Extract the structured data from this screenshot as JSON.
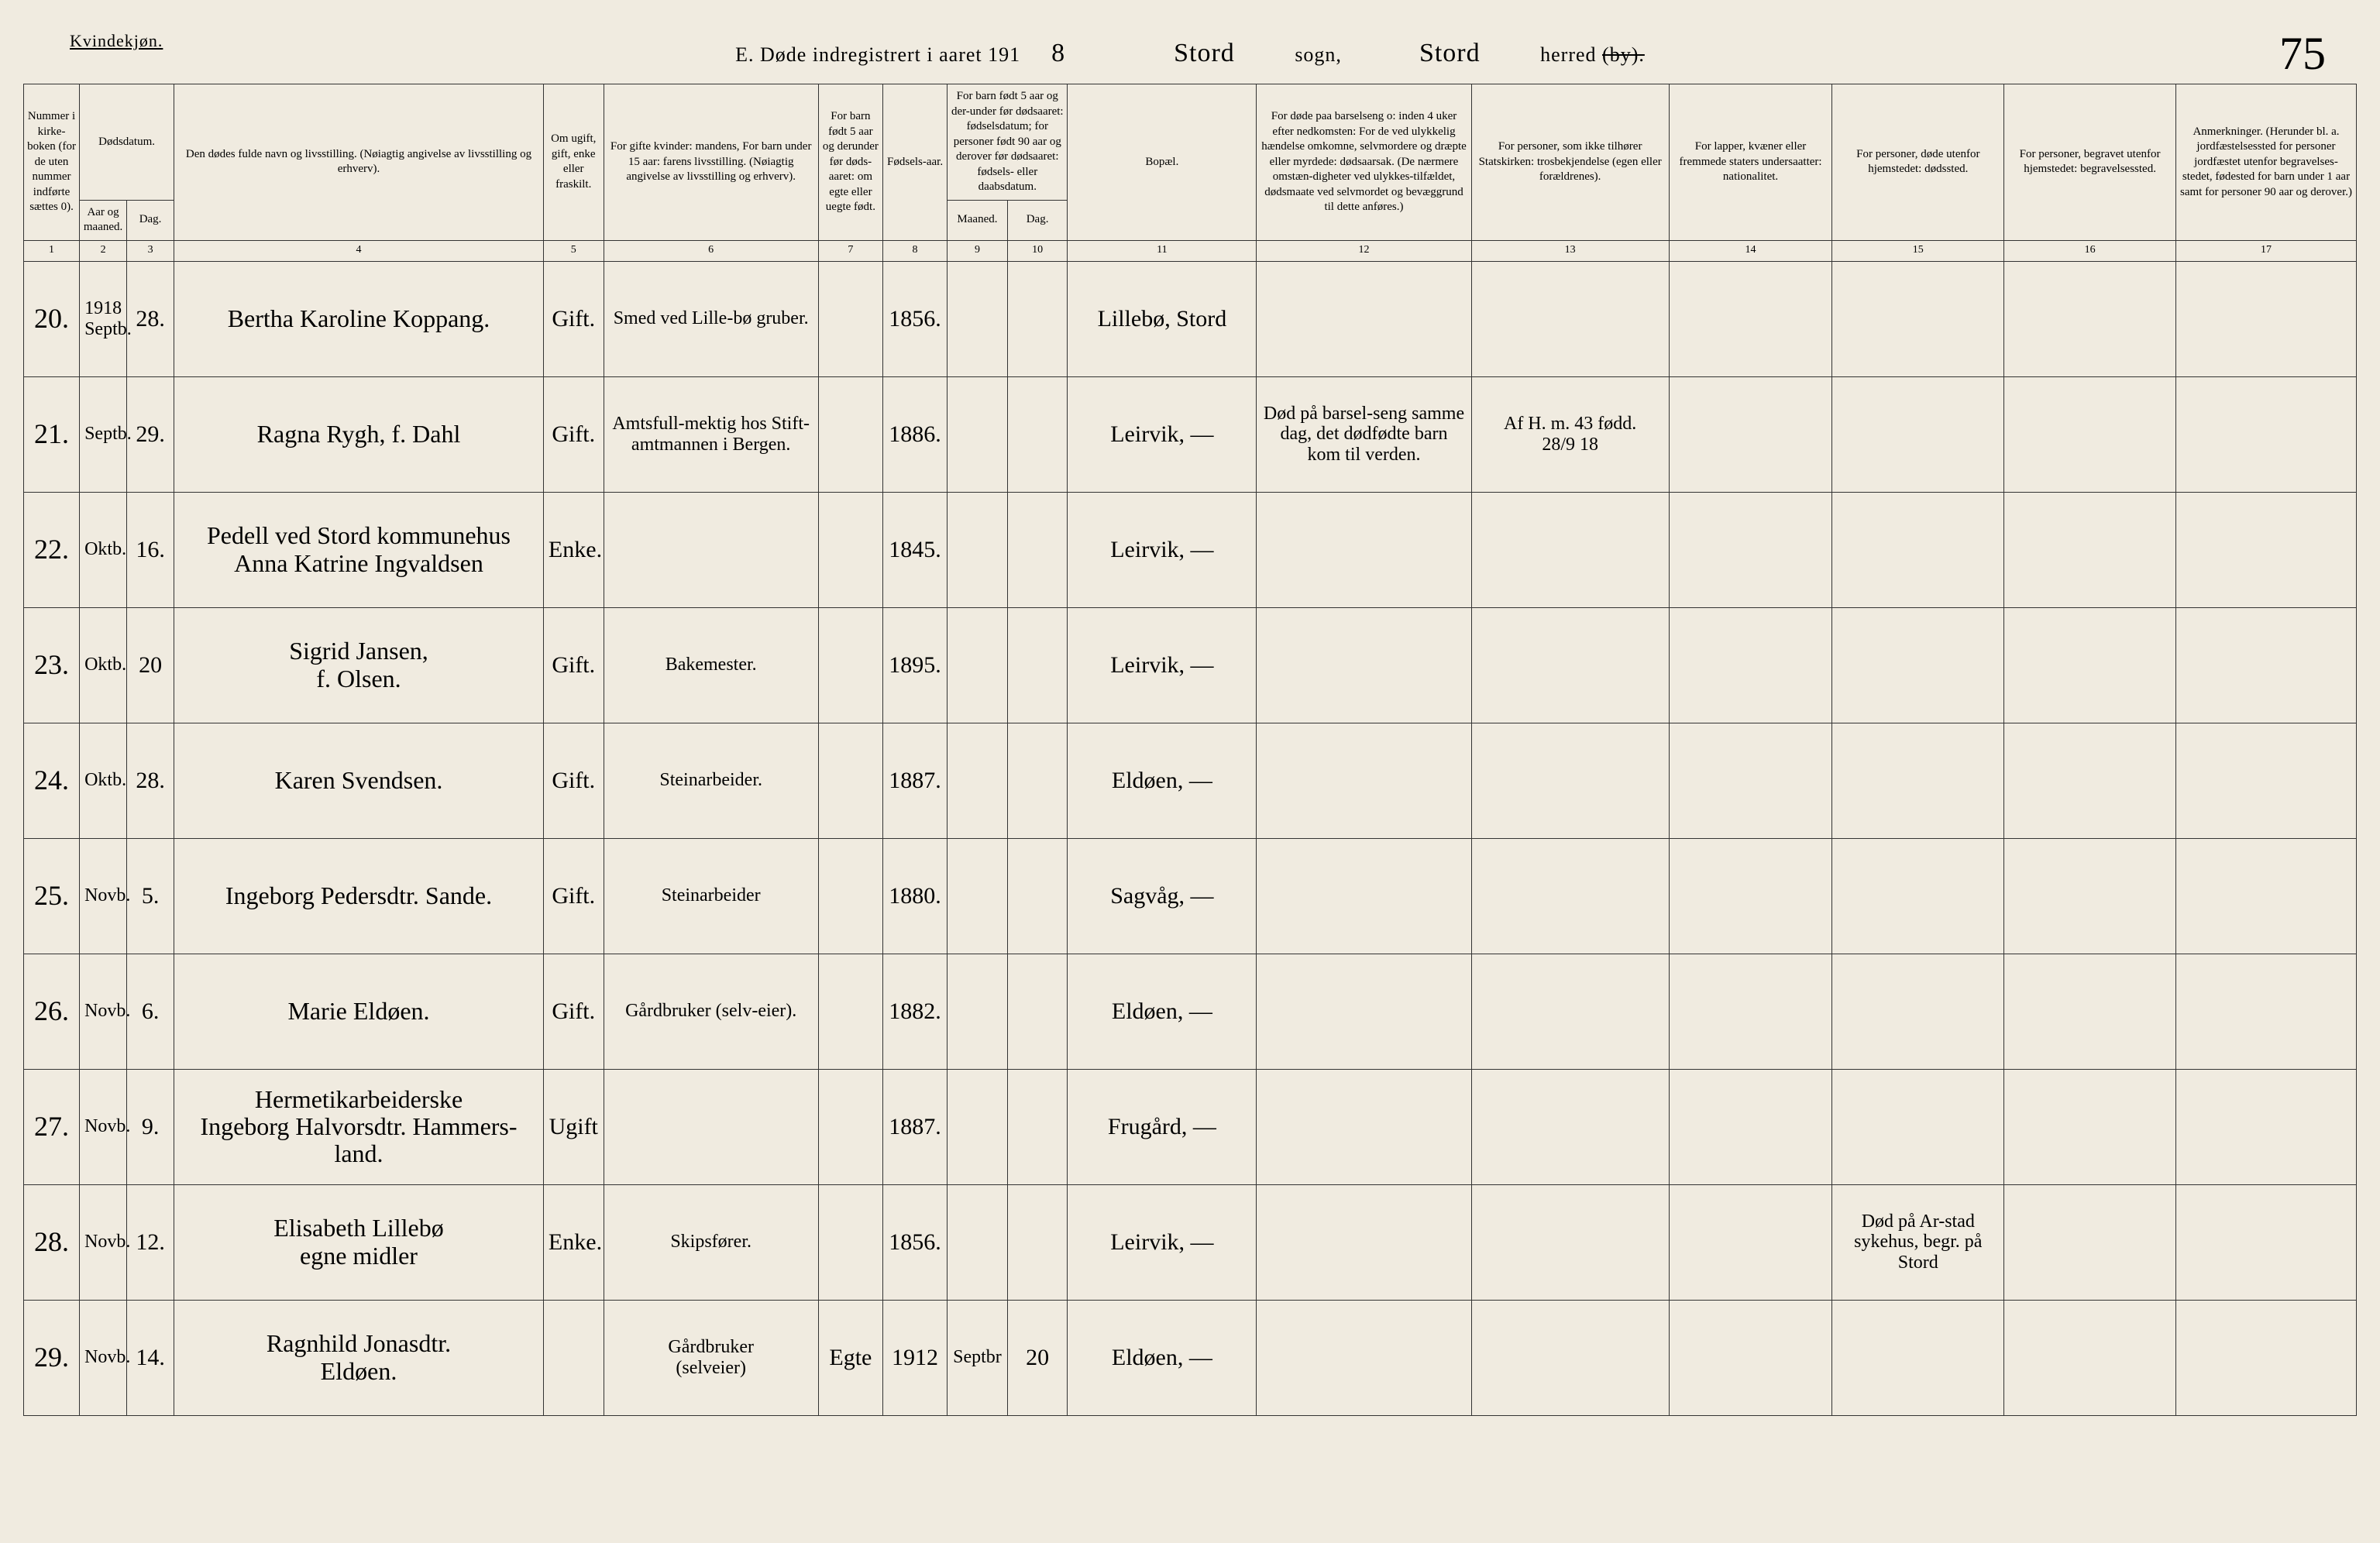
{
  "header": {
    "gender": "Kvindekjøn.",
    "title_prefix": "E.  Døde indregistrert i aaret 191",
    "year_suffix": "8",
    "sogn_label": "sogn,",
    "sogn_value": "Stord",
    "herred_label": "herred",
    "herred_struck": "(by).",
    "herred_value": "Stord",
    "page_number": "75"
  },
  "columns": {
    "c1": "Nummer i kirke-boken (for de uten nummer indførte sættes 0).",
    "c2_top": "Dødsdatum.",
    "c2a": "Aar og maaned.",
    "c2b": "Dag.",
    "c4": "Den dødes fulde navn og livsstilling.\n(Nøiagtig angivelse av livsstilling og erhverv).",
    "c5": "Om ugift, gift, enke eller fraskilt.",
    "c6": "For gifte kvinder:\nmandens,\nFor barn under 15 aar:\nfarens livsstilling.\n(Nøiagtig angivelse av livsstilling og erhverv).",
    "c7": "For barn født 5 aar og derunder før døds-aaret: om egte eller uegte født.",
    "c8": "Fødsels-aar.",
    "c9_10_top": "For barn født 5 aar og der-under før dødsaaret: fødselsdatum; for personer født 90 aar og derover før dødsaaret: fødsels- eller daabsdatum.",
    "c9": "Maaned.",
    "c10": "Dag.",
    "c11": "Bopæl.",
    "c12": "For døde paa barselseng o: inden 4 uker efter nedkomsten: For de ved ulykkelig hændelse omkomne, selvmordere og dræpte eller myrdede: dødsaarsak. (De nærmere omstæn-digheter ved ulykkes-tilfældet, dødsmaate ved selvmordet og bevæggrund til dette anføres.)",
    "c13": "For personer, som ikke tilhører Statskirken: trosbekjendelse (egen eller forældrenes).",
    "c14": "For lapper, kvæner eller fremmede staters undersaatter: nationalitet.",
    "c15": "For personer, døde utenfor hjemstedet: dødssted.",
    "c16": "For personer, begravet utenfor hjemstedet: begravelsessted.",
    "c17": "Anmerkninger. (Herunder bl. a. jordfæstelsessted for personer jordfæstet utenfor begravelses-stedet, fødested for barn under 1 aar samt for personer 90 aar og derover.)"
  },
  "colnums": [
    "1",
    "2",
    "3",
    "4",
    "5",
    "6",
    "7",
    "8",
    "9",
    "10",
    "11",
    "12",
    "13",
    "14",
    "15",
    "16",
    "17"
  ],
  "rows": [
    {
      "num": "20.",
      "year": "1918\nSeptb.",
      "day": "28.",
      "name": "Bertha Karoline Koppang.",
      "status": "Gift.",
      "spouse": "Smed ved Lille-bø gruber.",
      "egte": "",
      "birth": "1856.",
      "m": "",
      "d": "",
      "place": "Lillebø, Stord",
      "cause": "",
      "c13": "",
      "c14": "",
      "c15": "",
      "c16": "",
      "c17": ""
    },
    {
      "num": "21.",
      "year": "Septb.",
      "day": "29.",
      "name": "Ragna Rygh, f. Dahl",
      "status": "Gift.",
      "spouse": "Amtsfull-mektig hos Stift-amtmannen i Bergen.",
      "egte": "",
      "birth": "1886.",
      "m": "",
      "d": "",
      "place": "Leirvik, —",
      "cause": "Død på barsel-seng samme dag, det dødfødte barn kom til verden.",
      "c13": "Af H. m. 43 fødd.\n28/9 18",
      "c14": "",
      "c15": "",
      "c16": "",
      "c17": ""
    },
    {
      "num": "22.",
      "year": "Oktb.",
      "day": "16.",
      "name": "Pedell ved Stord kommunehus\nAnna Katrine Ingvaldsen",
      "status": "Enke.",
      "spouse": "",
      "egte": "",
      "birth": "1845.",
      "m": "",
      "d": "",
      "place": "Leirvik, —",
      "cause": "",
      "c13": "",
      "c14": "",
      "c15": "",
      "c16": "",
      "c17": ""
    },
    {
      "num": "23.",
      "year": "Oktb.",
      "day": "20",
      "name": "Sigrid Jansen,\nf. Olsen.",
      "status": "Gift.",
      "spouse": "Bakemester.",
      "egte": "",
      "birth": "1895.",
      "m": "",
      "d": "",
      "place": "Leirvik, —",
      "cause": "",
      "c13": "",
      "c14": "",
      "c15": "",
      "c16": "",
      "c17": ""
    },
    {
      "num": "24.",
      "year": "Oktb.",
      "day": "28.",
      "name": "Karen Svendsen.",
      "status": "Gift.",
      "spouse": "Steinarbeider.",
      "egte": "",
      "birth": "1887.",
      "m": "",
      "d": "",
      "place": "Eldøen, —",
      "cause": "",
      "c13": "",
      "c14": "",
      "c15": "",
      "c16": "",
      "c17": ""
    },
    {
      "num": "25.",
      "year": "Novb.",
      "day": "5.",
      "name": "Ingeborg Pedersdtr. Sande.",
      "status": "Gift.",
      "spouse": "Steinarbeider",
      "egte": "",
      "birth": "1880.",
      "m": "",
      "d": "",
      "place": "Sagvåg, —",
      "cause": "",
      "c13": "",
      "c14": "",
      "c15": "",
      "c16": "",
      "c17": ""
    },
    {
      "num": "26.",
      "year": "Novb.",
      "day": "6.",
      "name": "Marie Eldøen.",
      "status": "Gift.",
      "spouse": "Gårdbruker (selv-eier).",
      "egte": "",
      "birth": "1882.",
      "m": "",
      "d": "",
      "place": "Eldøen, —",
      "cause": "",
      "c13": "",
      "c14": "",
      "c15": "",
      "c16": "",
      "c17": ""
    },
    {
      "num": "27.",
      "year": "Novb.",
      "day": "9.",
      "name": "Hermetikarbeiderske\nIngeborg Halvorsdtr. Hammers-land.",
      "status": "Ugift",
      "spouse": "",
      "egte": "",
      "birth": "1887.",
      "m": "",
      "d": "",
      "place": "Frugård, —",
      "cause": "",
      "c13": "",
      "c14": "",
      "c15": "",
      "c16": "",
      "c17": ""
    },
    {
      "num": "28.",
      "year": "Novb.",
      "day": "12.",
      "name": "Elisabeth Lillebø\negne midler",
      "status": "Enke.",
      "spouse": "Skipsfører.",
      "egte": "",
      "birth": "1856.",
      "m": "",
      "d": "",
      "place": "Leirvik, —",
      "cause": "",
      "c13": "",
      "c14": "",
      "c15": "Død på Ar-stad sykehus, begr. på Stord",
      "c16": "",
      "c17": ""
    },
    {
      "num": "29.",
      "year": "Novb.",
      "day": "14.",
      "name": "Ragnhild Jonasdtr.\nEldøen.",
      "status": "",
      "spouse": "Gårdbruker\n(selveier)",
      "egte": "Egte",
      "birth": "1912",
      "m": "Septbr",
      "d": "20",
      "place": "Eldøen, —",
      "cause": "",
      "c13": "",
      "c14": "",
      "c15": "",
      "c16": "",
      "c17": ""
    }
  ]
}
